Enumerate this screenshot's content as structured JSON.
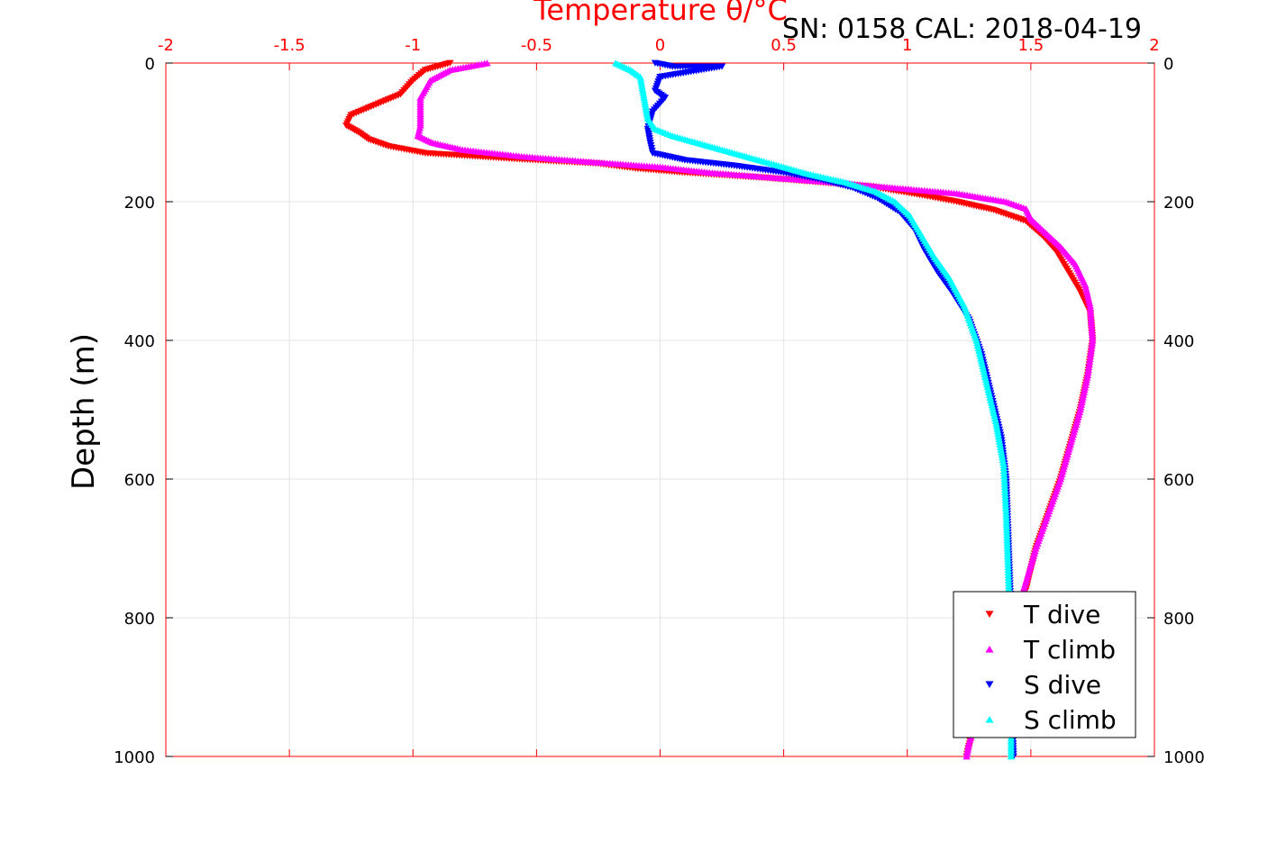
{
  "chart_data": {
    "type": "scatter",
    "title": "SN: 0158  CAL: 2018-04-19",
    "xlabel": "Temperature θ/°C",
    "ylabel": "Depth (m)",
    "xlim": [
      -2,
      2
    ],
    "ylim": [
      0,
      1000
    ],
    "y_reversed": true,
    "x_axis_position": "top",
    "x_ticks": [
      "-2",
      "-1.5",
      "-1",
      "-0.5",
      "0",
      "0.5",
      "1",
      "1.5",
      "2"
    ],
    "y_ticks": [
      "0",
      "200",
      "400",
      "600",
      "800",
      "1000"
    ],
    "grid": true,
    "legend_position": "bottom-right",
    "series": [
      {
        "name": "T dive",
        "marker": "triangle-down",
        "color": "#ff0000",
        "points": [
          [
            -0.85,
            0
          ],
          [
            -0.95,
            10
          ],
          [
            -1.0,
            25
          ],
          [
            -1.05,
            45
          ],
          [
            -1.15,
            60
          ],
          [
            -1.25,
            75
          ],
          [
            -1.27,
            90
          ],
          [
            -1.22,
            100
          ],
          [
            -1.18,
            110
          ],
          [
            -1.1,
            120
          ],
          [
            -0.95,
            130
          ],
          [
            -0.6,
            138
          ],
          [
            -0.25,
            145
          ],
          [
            -0.1,
            152
          ],
          [
            0.1,
            158
          ],
          [
            0.4,
            165
          ],
          [
            0.65,
            172
          ],
          [
            0.85,
            178
          ],
          [
            1.05,
            190
          ],
          [
            1.2,
            200
          ],
          [
            1.35,
            212
          ],
          [
            1.48,
            228
          ],
          [
            1.55,
            250
          ],
          [
            1.6,
            270
          ],
          [
            1.65,
            300
          ],
          [
            1.7,
            330
          ],
          [
            1.74,
            360
          ],
          [
            1.75,
            400
          ],
          [
            1.73,
            450
          ],
          [
            1.7,
            500
          ],
          [
            1.66,
            550
          ],
          [
            1.62,
            600
          ],
          [
            1.57,
            650
          ],
          [
            1.52,
            700
          ],
          [
            1.48,
            760
          ],
          [
            1.42,
            800
          ],
          [
            1.36,
            860
          ],
          [
            1.3,
            920
          ],
          [
            1.26,
            970
          ],
          [
            1.24,
            1000
          ]
        ]
      },
      {
        "name": "T climb",
        "marker": "triangle-up",
        "color": "#ff00ff",
        "points": [
          [
            -0.7,
            0
          ],
          [
            -0.85,
            10
          ],
          [
            -0.93,
            25
          ],
          [
            -0.97,
            50
          ],
          [
            -0.97,
            70
          ],
          [
            -0.97,
            90
          ],
          [
            -0.98,
            105
          ],
          [
            -0.92,
            115
          ],
          [
            -0.8,
            125
          ],
          [
            -0.55,
            135
          ],
          [
            -0.3,
            142
          ],
          [
            0.0,
            150
          ],
          [
            0.2,
            158
          ],
          [
            0.45,
            165
          ],
          [
            0.7,
            172
          ],
          [
            0.95,
            180
          ],
          [
            1.2,
            188
          ],
          [
            1.4,
            200
          ],
          [
            1.48,
            210
          ],
          [
            1.5,
            225
          ],
          [
            1.56,
            245
          ],
          [
            1.62,
            265
          ],
          [
            1.68,
            290
          ],
          [
            1.72,
            320
          ],
          [
            1.74,
            350
          ],
          [
            1.75,
            400
          ],
          [
            1.73,
            450
          ],
          [
            1.7,
            500
          ],
          [
            1.66,
            550
          ],
          [
            1.62,
            600
          ],
          [
            1.57,
            650
          ],
          [
            1.52,
            700
          ],
          [
            1.47,
            760
          ],
          [
            1.41,
            820
          ],
          [
            1.35,
            880
          ],
          [
            1.29,
            940
          ],
          [
            1.25,
            980
          ],
          [
            1.24,
            1000
          ]
        ]
      },
      {
        "name": "S dive",
        "marker": "triangle-down",
        "color": "#0000ff",
        "points": [
          [
            -0.02,
            0
          ],
          [
            0.05,
            5
          ],
          [
            0.25,
            5
          ],
          [
            0.0,
            20
          ],
          [
            -0.02,
            40
          ],
          [
            0.02,
            50
          ],
          [
            -0.03,
            70
          ],
          [
            -0.05,
            95
          ],
          [
            -0.04,
            115
          ],
          [
            -0.03,
            130
          ],
          [
            0.1,
            140
          ],
          [
            0.3,
            148
          ],
          [
            0.5,
            158
          ],
          [
            0.65,
            168
          ],
          [
            0.78,
            180
          ],
          [
            0.88,
            195
          ],
          [
            0.97,
            215
          ],
          [
            1.03,
            240
          ],
          [
            1.07,
            270
          ],
          [
            1.12,
            300
          ],
          [
            1.18,
            330
          ],
          [
            1.25,
            370
          ],
          [
            1.3,
            420
          ],
          [
            1.34,
            480
          ],
          [
            1.38,
            540
          ],
          [
            1.4,
            600
          ],
          [
            1.41,
            700
          ],
          [
            1.42,
            800
          ],
          [
            1.42,
            900
          ],
          [
            1.43,
            1000
          ]
        ]
      },
      {
        "name": "S climb",
        "marker": "triangle-up",
        "color": "#00ffff",
        "points": [
          [
            -0.18,
            0
          ],
          [
            -0.12,
            10
          ],
          [
            -0.08,
            20
          ],
          [
            -0.07,
            40
          ],
          [
            -0.06,
            60
          ],
          [
            -0.05,
            80
          ],
          [
            -0.02,
            95
          ],
          [
            0.05,
            105
          ],
          [
            0.15,
            115
          ],
          [
            0.3,
            130
          ],
          [
            0.45,
            145
          ],
          [
            0.6,
            160
          ],
          [
            0.75,
            172
          ],
          [
            0.87,
            185
          ],
          [
            0.95,
            200
          ],
          [
            1.01,
            220
          ],
          [
            1.06,
            250
          ],
          [
            1.11,
            280
          ],
          [
            1.17,
            310
          ],
          [
            1.23,
            350
          ],
          [
            1.28,
            400
          ],
          [
            1.32,
            460
          ],
          [
            1.36,
            520
          ],
          [
            1.39,
            580
          ],
          [
            1.4,
            650
          ],
          [
            1.41,
            750
          ],
          [
            1.42,
            850
          ],
          [
            1.42,
            950
          ],
          [
            1.42,
            1000
          ]
        ]
      }
    ]
  }
}
